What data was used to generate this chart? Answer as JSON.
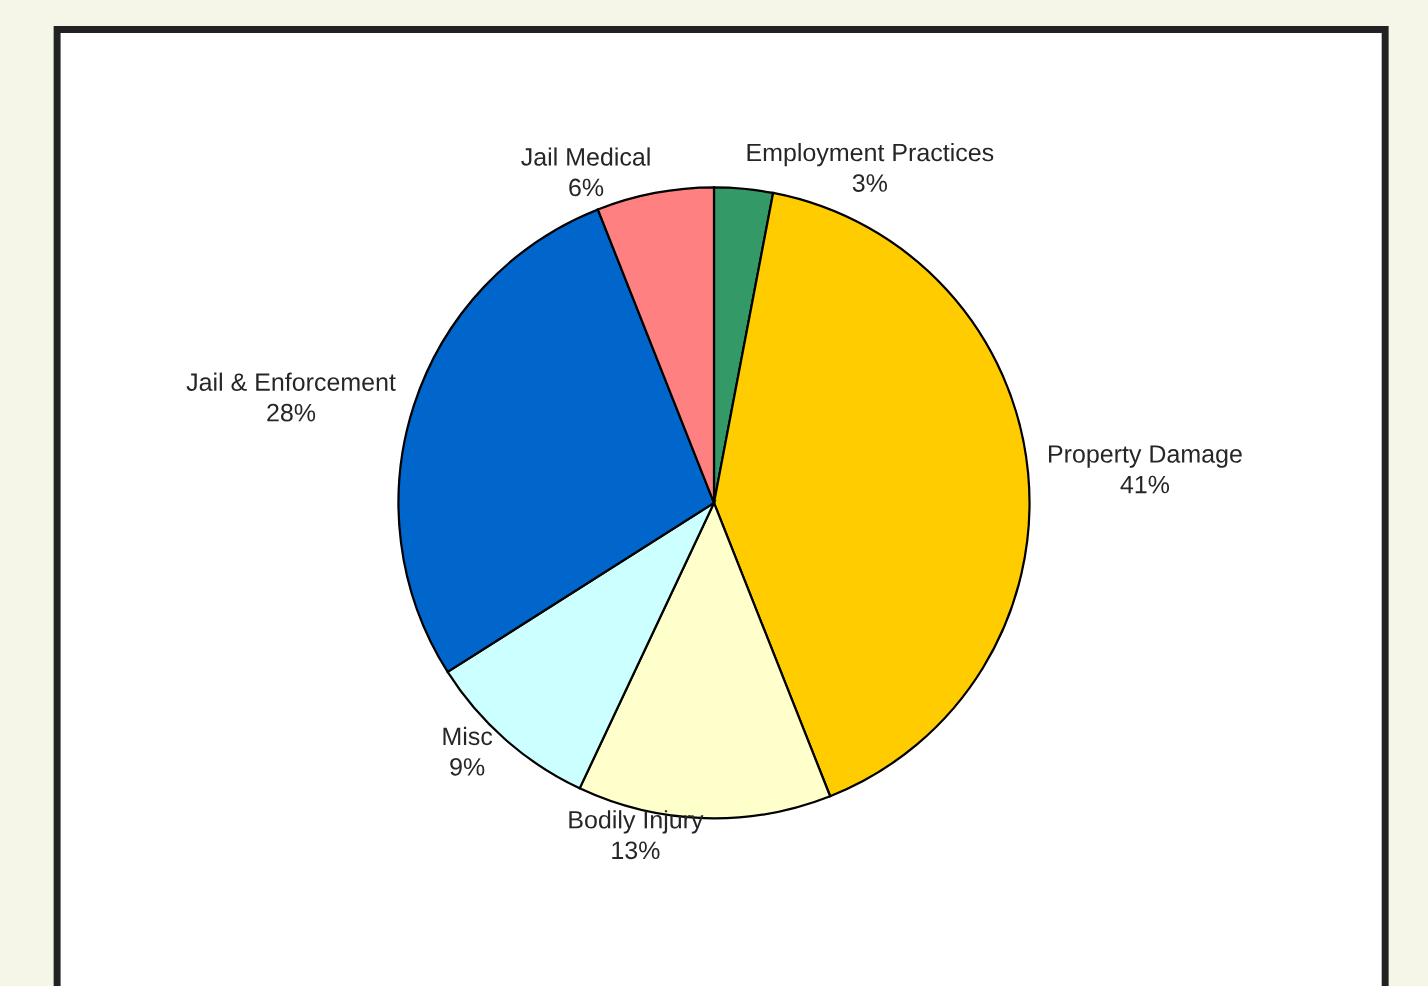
{
  "chart_data": {
    "type": "pie",
    "categories": [
      "Employment Practices",
      "Property Damage",
      "Bodily Injury",
      "Misc",
      "Jail & Enforcement",
      "Jail Medical"
    ],
    "values": [
      3,
      41,
      13,
      9,
      28,
      6
    ],
    "value_labels": [
      "3%",
      "41%",
      "13%",
      "9%",
      "28%",
      "6%"
    ],
    "colors": [
      "#339966",
      "#ffcc00",
      "#ffffcc",
      "#ccffff",
      "#0066cc",
      "#ff8080"
    ]
  }
}
